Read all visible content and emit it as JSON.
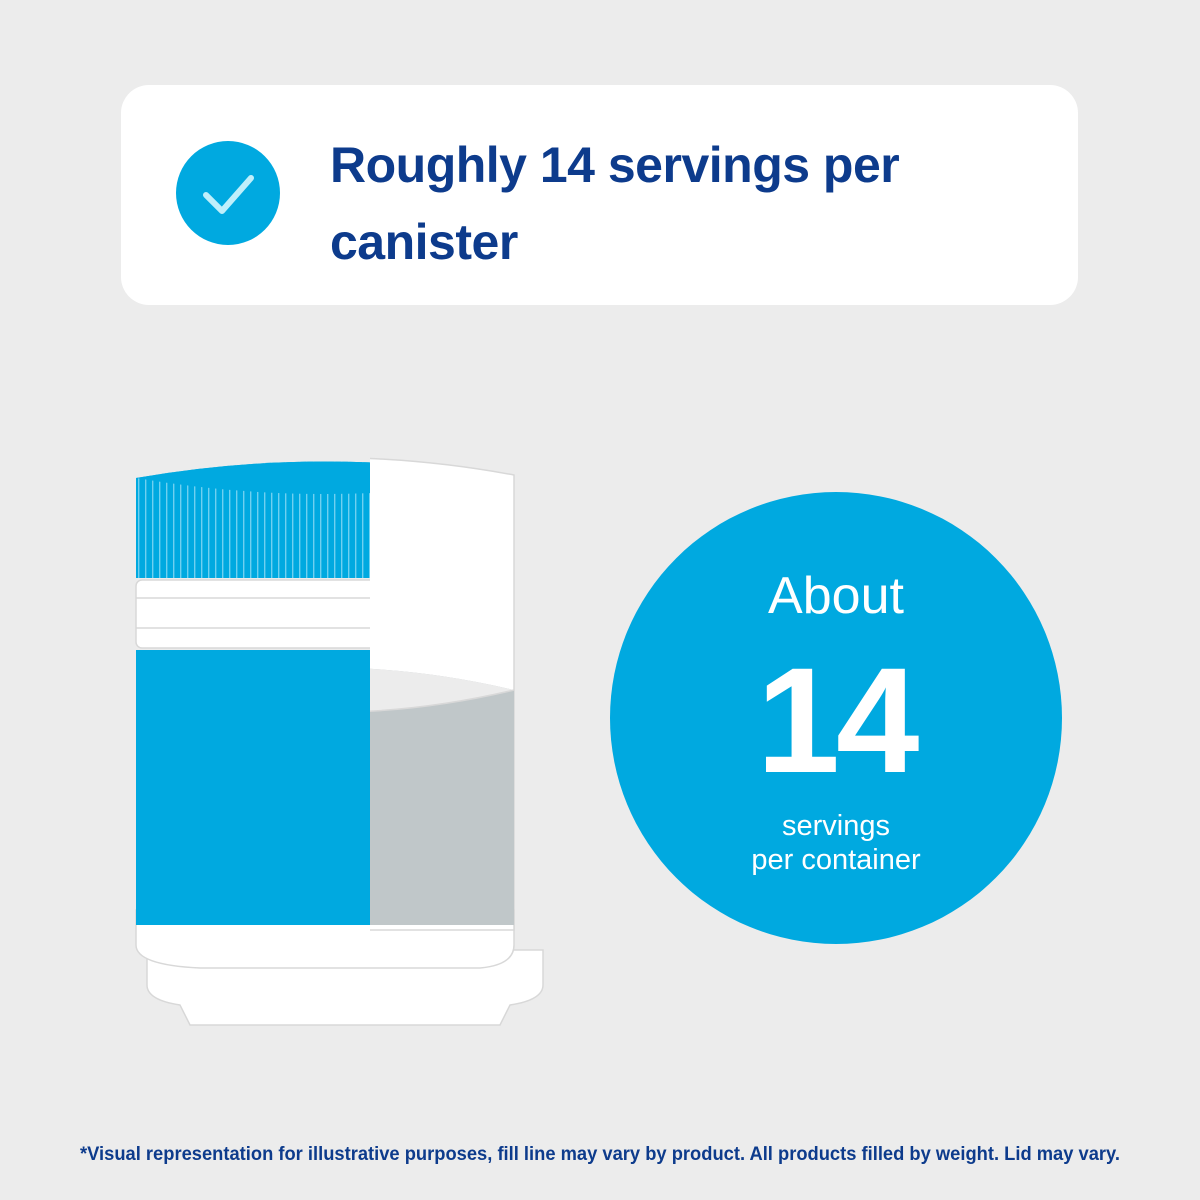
{
  "header": {
    "title_lines": [
      "Roughly 14 servings per",
      "canister"
    ]
  },
  "badge": {
    "lead": "About",
    "number": "14",
    "caption_lines": [
      "servings",
      "per container"
    ]
  },
  "footnote": "*Visual representation for illustrative purposes, fill line may vary by product. All products filled by weight. Lid may vary."
}
